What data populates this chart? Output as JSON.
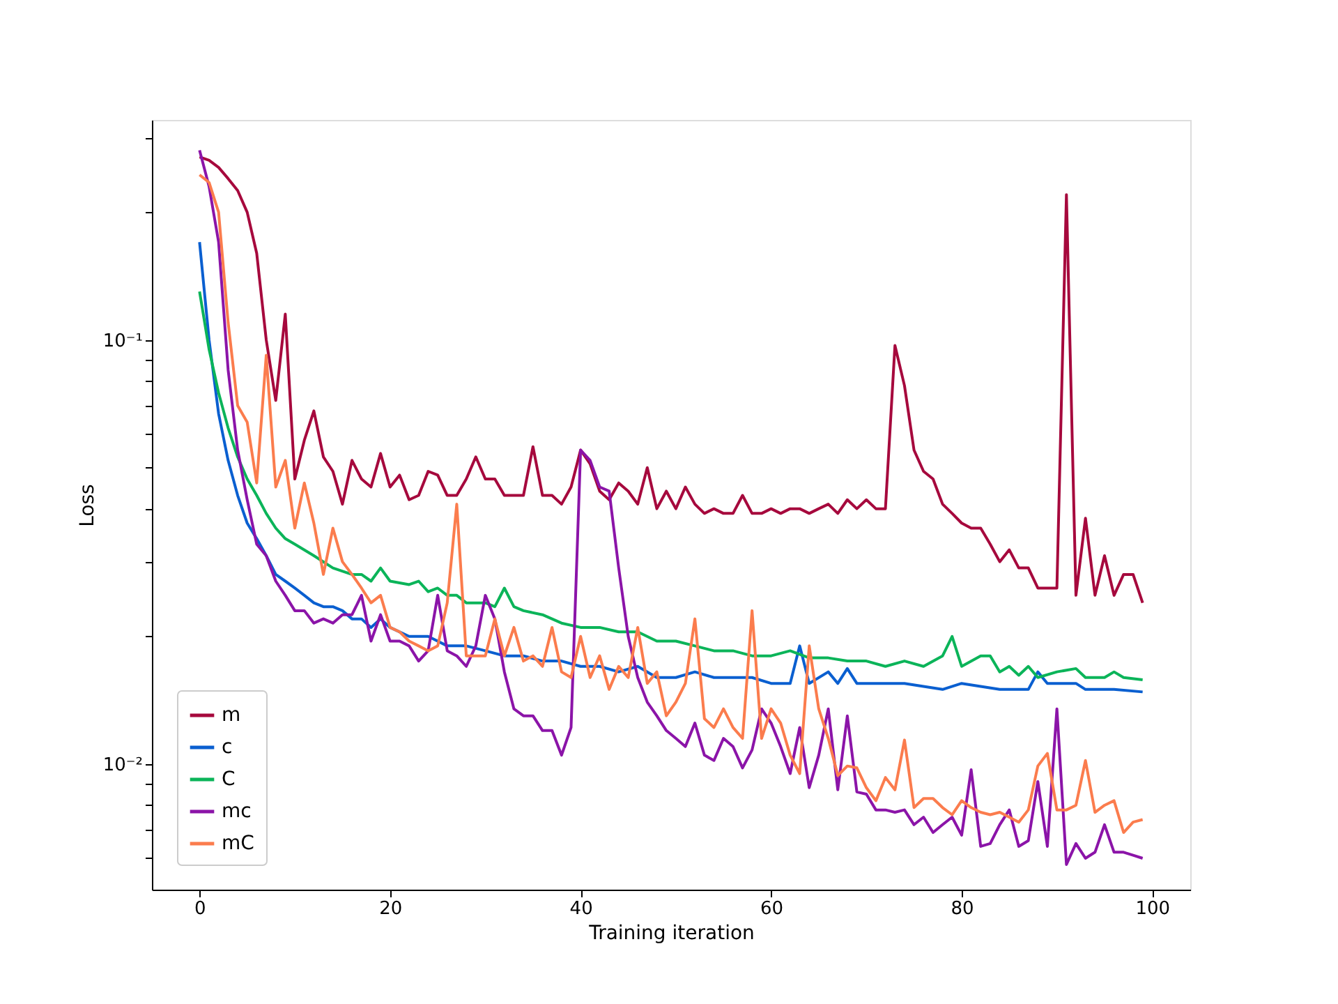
{
  "chart_data": {
    "type": "line",
    "xlabel": "Training iteration",
    "ylabel": "Loss",
    "log": "y",
    "grid": false,
    "legend": "bottom left",
    "xlim": [
      -5,
      104
    ],
    "xticks": [
      0,
      20,
      40,
      60,
      80,
      100
    ],
    "ylim": [
      0.00506,
      0.33
    ],
    "yticks": [
      {
        "value": 0.006,
        "label": null
      },
      {
        "value": 0.007,
        "label": null
      },
      {
        "value": 0.008,
        "label": null
      },
      {
        "value": 0.009,
        "label": null
      },
      {
        "value": 0.01,
        "label": "10⁻²"
      },
      {
        "value": 0.02,
        "label": null
      },
      {
        "value": 0.03,
        "label": null
      },
      {
        "value": 0.04,
        "label": null
      },
      {
        "value": 0.05,
        "label": null
      },
      {
        "value": 0.06,
        "label": null
      },
      {
        "value": 0.07,
        "label": null
      },
      {
        "value": 0.08,
        "label": null
      },
      {
        "value": 0.09,
        "label": null
      },
      {
        "value": 0.1,
        "label": "10⁻¹"
      },
      {
        "value": 0.2,
        "label": null
      },
      {
        "value": 0.3,
        "label": null
      }
    ],
    "series": [
      {
        "name": "m",
        "color": "#a6093d",
        "x": [
          0,
          1,
          2,
          3,
          4,
          5,
          6,
          7,
          8,
          9,
          10,
          11,
          12,
          13,
          14,
          15,
          16,
          17,
          18,
          19,
          20,
          21,
          22,
          23,
          24,
          25,
          26,
          27,
          28,
          29,
          30,
          31,
          32,
          33,
          34,
          35,
          36,
          37,
          38,
          39,
          40,
          41,
          42,
          43,
          44,
          45,
          46,
          47,
          48,
          49,
          50,
          51,
          52,
          53,
          54,
          55,
          56,
          57,
          58,
          59,
          60,
          61,
          62,
          63,
          64,
          65,
          66,
          67,
          68,
          69,
          70,
          71,
          72,
          73,
          74,
          75,
          76,
          77,
          78,
          79,
          80,
          81,
          82,
          83,
          84,
          85,
          86,
          87,
          88,
          89,
          90,
          91,
          92,
          93,
          94,
          95,
          96,
          97,
          98,
          99
        ],
        "values": [
          0.27,
          0.265,
          0.255,
          0.24,
          0.225,
          0.2,
          0.16,
          0.1,
          0.072,
          0.115,
          0.047,
          0.058,
          0.068,
          0.053,
          0.049,
          0.041,
          0.052,
          0.047,
          0.045,
          0.054,
          0.045,
          0.048,
          0.042,
          0.043,
          0.049,
          0.048,
          0.043,
          0.043,
          0.047,
          0.053,
          0.047,
          0.047,
          0.043,
          0.043,
          0.043,
          0.056,
          0.043,
          0.043,
          0.041,
          0.045,
          0.055,
          0.051,
          0.044,
          0.042,
          0.046,
          0.044,
          0.041,
          0.05,
          0.04,
          0.044,
          0.04,
          0.045,
          0.041,
          0.039,
          0.04,
          0.039,
          0.039,
          0.043,
          0.039,
          0.039,
          0.04,
          0.039,
          0.04,
          0.04,
          0.039,
          0.04,
          0.041,
          0.039,
          0.042,
          0.04,
          0.042,
          0.04,
          0.04,
          0.097,
          0.078,
          0.055,
          0.049,
          0.047,
          0.041,
          0.039,
          0.037,
          0.036,
          0.036,
          0.033,
          0.03,
          0.032,
          0.029,
          0.029,
          0.026,
          0.026,
          0.026,
          0.22,
          0.025,
          0.038,
          0.025,
          0.031,
          0.025,
          0.028,
          0.028,
          0.024
        ]
      },
      {
        "name": "c",
        "color": "#0a5fd0",
        "x": [
          0,
          1,
          2,
          3,
          4,
          5,
          6,
          7,
          8,
          9,
          10,
          11,
          12,
          13,
          14,
          15,
          16,
          17,
          18,
          19,
          20,
          22,
          24,
          26,
          28,
          30,
          32,
          34,
          36,
          38,
          40,
          42,
          44,
          46,
          48,
          50,
          52,
          54,
          56,
          58,
          60,
          62,
          63,
          64,
          66,
          67,
          68,
          69,
          70,
          74,
          78,
          80,
          84,
          87,
          88,
          89,
          90,
          92,
          93,
          96,
          99
        ],
        "values": [
          0.17,
          0.1,
          0.067,
          0.052,
          0.043,
          0.037,
          0.034,
          0.031,
          0.028,
          0.027,
          0.026,
          0.025,
          0.024,
          0.0235,
          0.0235,
          0.023,
          0.022,
          0.022,
          0.021,
          0.022,
          0.021,
          0.02,
          0.02,
          0.019,
          0.019,
          0.0185,
          0.018,
          0.018,
          0.0175,
          0.0175,
          0.017,
          0.017,
          0.0165,
          0.017,
          0.016,
          0.016,
          0.0165,
          0.016,
          0.016,
          0.016,
          0.0155,
          0.0155,
          0.019,
          0.0155,
          0.0165,
          0.0155,
          0.0168,
          0.0155,
          0.0155,
          0.0155,
          0.015,
          0.0155,
          0.015,
          0.015,
          0.0165,
          0.0155,
          0.0155,
          0.0155,
          0.015,
          0.015,
          0.0148
        ]
      },
      {
        "name": "C",
        "color": "#0bb459",
        "x": [
          0,
          1,
          2,
          3,
          4,
          5,
          6,
          7,
          8,
          9,
          10,
          12,
          14,
          16,
          17,
          18,
          19,
          20,
          22,
          23,
          24,
          25,
          26,
          27,
          28,
          30,
          31,
          32,
          33,
          34,
          36,
          38,
          40,
          42,
          44,
          46,
          48,
          50,
          52,
          54,
          56,
          58,
          60,
          62,
          64,
          66,
          68,
          70,
          72,
          74,
          76,
          78,
          79,
          80,
          82,
          83,
          84,
          85,
          86,
          87,
          88,
          90,
          92,
          93,
          95,
          96,
          97,
          99
        ],
        "values": [
          0.13,
          0.095,
          0.075,
          0.062,
          0.053,
          0.047,
          0.043,
          0.039,
          0.036,
          0.034,
          0.033,
          0.031,
          0.029,
          0.028,
          0.028,
          0.027,
          0.029,
          0.027,
          0.0265,
          0.027,
          0.0255,
          0.026,
          0.025,
          0.025,
          0.024,
          0.024,
          0.0235,
          0.026,
          0.0235,
          0.023,
          0.0225,
          0.0215,
          0.021,
          0.021,
          0.0205,
          0.0205,
          0.0195,
          0.0195,
          0.019,
          0.0185,
          0.0185,
          0.018,
          0.018,
          0.0185,
          0.0178,
          0.0178,
          0.0175,
          0.0175,
          0.017,
          0.0175,
          0.017,
          0.018,
          0.02,
          0.017,
          0.018,
          0.018,
          0.0165,
          0.017,
          0.0162,
          0.017,
          0.016,
          0.0165,
          0.0168,
          0.016,
          0.016,
          0.0165,
          0.016,
          0.0158
        ]
      },
      {
        "name": "mc",
        "color": "#8b14a8",
        "x": [
          0,
          1,
          2,
          3,
          4,
          5,
          6,
          7,
          8,
          9,
          10,
          11,
          12,
          13,
          14,
          15,
          16,
          17,
          18,
          19,
          20,
          21,
          22,
          23,
          24,
          25,
          26,
          27,
          28,
          29,
          30,
          31,
          32,
          33,
          34,
          35,
          36,
          37,
          38,
          39,
          40,
          41,
          42,
          43,
          44,
          45,
          46,
          47,
          48,
          49,
          50,
          51,
          52,
          53,
          54,
          55,
          56,
          57,
          58,
          59,
          60,
          61,
          62,
          63,
          64,
          65,
          66,
          67,
          68,
          69,
          70,
          71,
          72,
          73,
          74,
          75,
          76,
          77,
          78,
          79,
          80,
          81,
          82,
          83,
          84,
          85,
          86,
          87,
          88,
          89,
          90,
          91,
          92,
          93,
          94,
          95,
          96,
          97,
          98,
          99
        ],
        "values": [
          0.28,
          0.23,
          0.17,
          0.085,
          0.055,
          0.042,
          0.033,
          0.031,
          0.027,
          0.025,
          0.023,
          0.023,
          0.0215,
          0.022,
          0.0215,
          0.0225,
          0.0225,
          0.025,
          0.0195,
          0.0225,
          0.0195,
          0.0195,
          0.019,
          0.0175,
          0.0185,
          0.025,
          0.0185,
          0.018,
          0.017,
          0.019,
          0.025,
          0.022,
          0.0165,
          0.0135,
          0.013,
          0.013,
          0.012,
          0.012,
          0.0105,
          0.0122,
          0.055,
          0.052,
          0.045,
          0.044,
          0.029,
          0.02,
          0.016,
          0.014,
          0.013,
          0.012,
          0.0115,
          0.011,
          0.0125,
          0.0105,
          0.0102,
          0.0115,
          0.011,
          0.0098,
          0.0108,
          0.0135,
          0.0125,
          0.011,
          0.0095,
          0.0122,
          0.0088,
          0.0105,
          0.0135,
          0.0087,
          0.013,
          0.0086,
          0.0085,
          0.0078,
          0.0078,
          0.0077,
          0.0078,
          0.0072,
          0.0075,
          0.0069,
          0.0072,
          0.0075,
          0.0068,
          0.0097,
          0.0064,
          0.0065,
          0.0072,
          0.0078,
          0.0064,
          0.0066,
          0.0091,
          0.0064,
          0.0135,
          0.0058,
          0.0065,
          0.006,
          0.0062,
          0.0072,
          0.0062,
          0.0062,
          0.0061,
          0.006
        ]
      },
      {
        "name": "mC",
        "color": "#fb7c4d",
        "x": [
          0,
          1,
          2,
          3,
          4,
          5,
          6,
          7,
          8,
          9,
          10,
          11,
          12,
          13,
          14,
          15,
          16,
          17,
          18,
          19,
          20,
          21,
          22,
          23,
          24,
          25,
          26,
          27,
          28,
          29,
          30,
          31,
          32,
          33,
          34,
          35,
          36,
          37,
          38,
          39,
          40,
          41,
          42,
          43,
          44,
          45,
          46,
          47,
          48,
          49,
          50,
          51,
          52,
          53,
          54,
          55,
          56,
          57,
          58,
          59,
          60,
          61,
          62,
          63,
          64,
          65,
          66,
          67,
          68,
          69,
          70,
          71,
          72,
          73,
          74,
          75,
          76,
          77,
          78,
          79,
          80,
          81,
          82,
          83,
          84,
          85,
          86,
          87,
          88,
          89,
          90,
          91,
          92,
          93,
          94,
          95,
          96,
          97,
          98,
          99
        ],
        "values": [
          0.245,
          0.235,
          0.2,
          0.11,
          0.07,
          0.064,
          0.046,
          0.092,
          0.045,
          0.052,
          0.036,
          0.046,
          0.037,
          0.028,
          0.036,
          0.03,
          0.028,
          0.026,
          0.024,
          0.025,
          0.021,
          0.0205,
          0.0195,
          0.019,
          0.0185,
          0.019,
          0.024,
          0.041,
          0.018,
          0.018,
          0.018,
          0.022,
          0.018,
          0.021,
          0.0175,
          0.018,
          0.017,
          0.021,
          0.0165,
          0.016,
          0.02,
          0.016,
          0.018,
          0.015,
          0.017,
          0.016,
          0.021,
          0.0155,
          0.0165,
          0.013,
          0.014,
          0.0155,
          0.022,
          0.0128,
          0.0122,
          0.0135,
          0.0122,
          0.0115,
          0.023,
          0.0115,
          0.0135,
          0.0125,
          0.0105,
          0.0095,
          0.019,
          0.0135,
          0.0115,
          0.0094,
          0.0099,
          0.0098,
          0.0088,
          0.0082,
          0.0093,
          0.0087,
          0.0114,
          0.0079,
          0.0083,
          0.0083,
          0.0079,
          0.0076,
          0.0082,
          0.0079,
          0.0077,
          0.0076,
          0.0077,
          0.0075,
          0.0073,
          0.0078,
          0.0099,
          0.0106,
          0.0078,
          0.0078,
          0.008,
          0.0102,
          0.0077,
          0.008,
          0.0082,
          0.0069,
          0.0073,
          0.0074
        ]
      }
    ]
  }
}
